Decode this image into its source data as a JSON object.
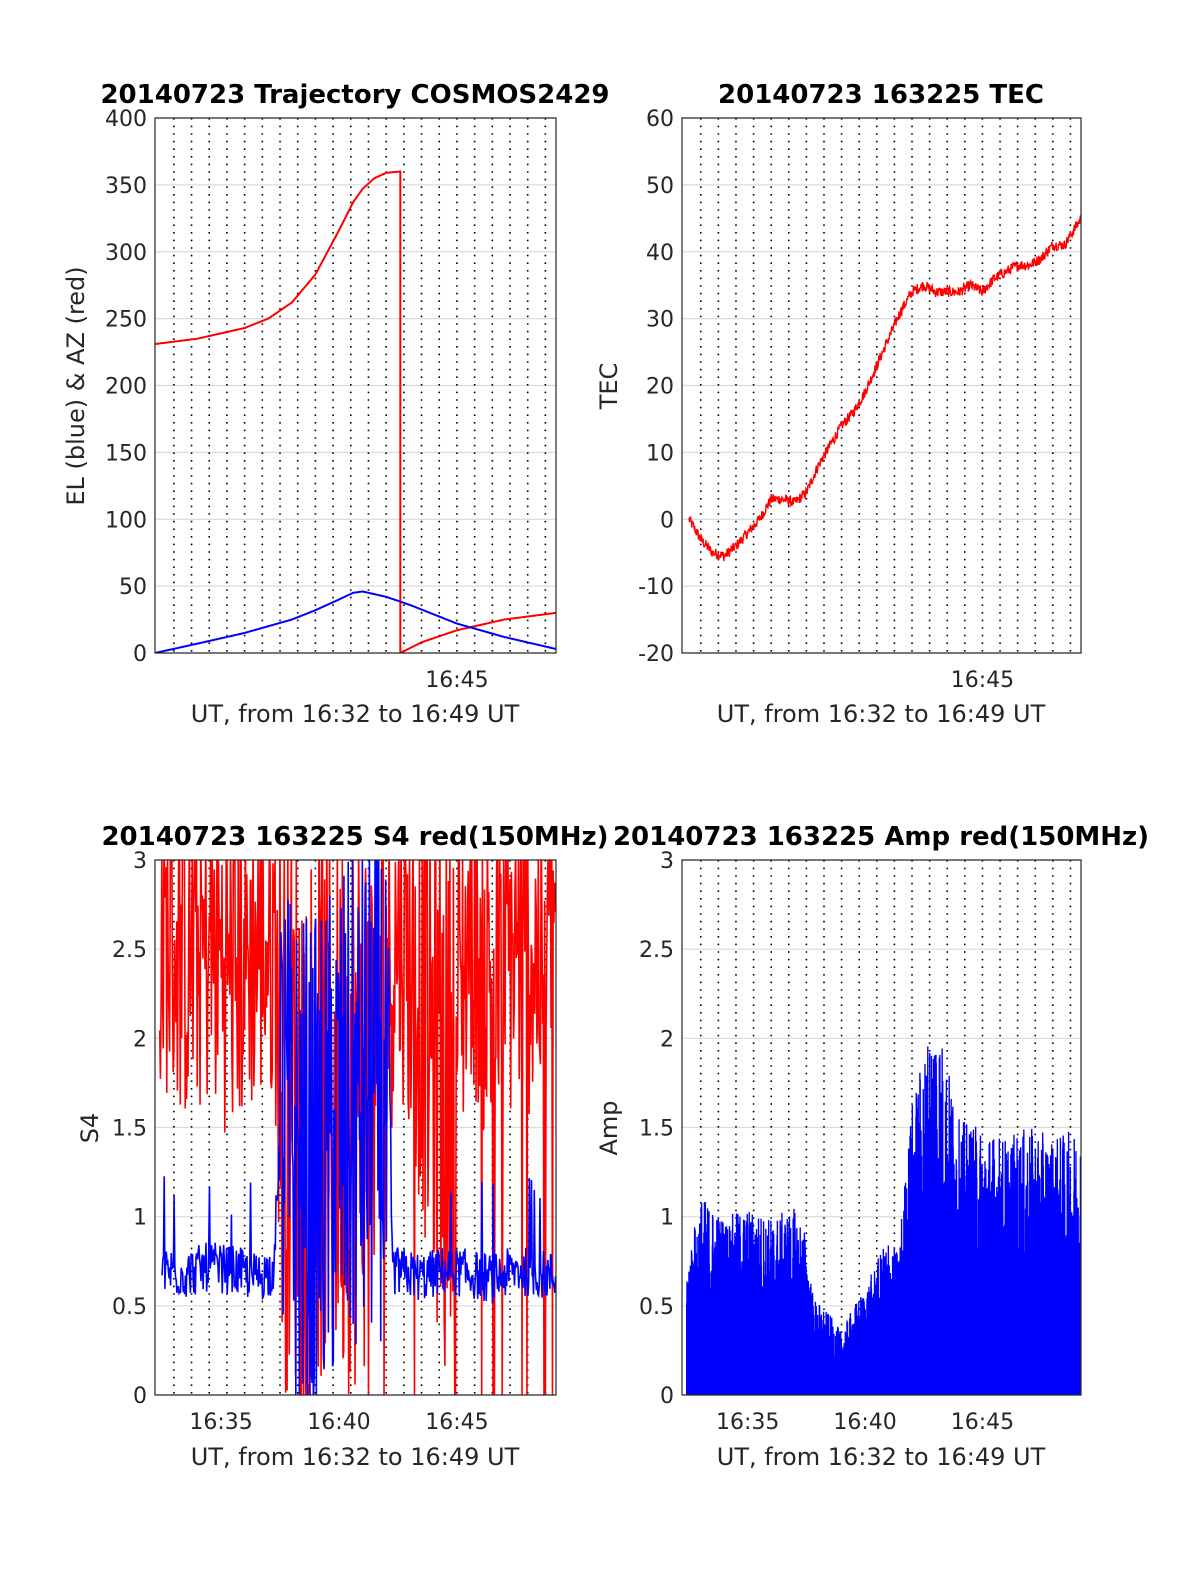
{
  "chart_data": [
    {
      "type": "line",
      "title": "20140723 Trajectory COSMOS2429",
      "xlabel": "UT, from 16:32 to 16:49 UT",
      "ylabel": "EL (blue) & AZ (red)",
      "xlim": [
        32.2,
        49.2
      ],
      "ylim": [
        0,
        400
      ],
      "yticks": [
        0,
        50,
        100,
        150,
        200,
        250,
        300,
        350,
        400
      ],
      "xticks": [
        {
          "x": 45,
          "label": "16:45"
        }
      ],
      "grid": "vertical dotted every 45 s, horizontal at y ticks",
      "series": [
        {
          "color": "#ff0000",
          "x": [
            32.2,
            34,
            36,
            37,
            38,
            39,
            40,
            40.6,
            41,
            41.5,
            42,
            42.6,
            42.6,
            43.5,
            45,
            47,
            49.2
          ],
          "y": [
            231,
            235,
            243,
            250,
            262,
            283,
            316,
            337,
            347,
            355,
            359,
            360,
            0,
            8,
            17,
            25,
            30
          ]
        },
        {
          "color": "#0000ff",
          "x": [
            32.2,
            34,
            36,
            38,
            39,
            40,
            40.6,
            41,
            42,
            43,
            44,
            45,
            47,
            49.2
          ],
          "y": [
            0,
            7,
            15,
            25,
            32,
            40,
            45,
            46,
            42,
            36,
            29,
            22,
            12,
            3
          ]
        }
      ]
    },
    {
      "type": "line",
      "title": "20140723 163225 TEC",
      "xlabel": "UT, from 16:32 to 16:49 UT",
      "ylabel": "TEC",
      "xlim": [
        32.2,
        49.2
      ],
      "ylim": [
        -20,
        60
      ],
      "yticks": [
        -20,
        -10,
        0,
        10,
        20,
        30,
        40,
        50,
        60
      ],
      "xticks": [
        {
          "x": 45,
          "label": "16:45"
        }
      ],
      "series": [
        {
          "color": "#ff0000",
          "x": [
            32.5,
            33,
            33.5,
            34,
            34.5,
            35,
            35.5,
            36,
            36.5,
            37,
            37.5,
            38,
            38.5,
            39,
            39.5,
            40,
            40.5,
            41,
            41.5,
            42,
            42.5,
            43,
            43.5,
            44,
            44.5,
            45,
            45.5,
            46,
            46.5,
            47,
            47.5,
            48,
            48.5,
            49.2
          ],
          "y": [
            0,
            -3,
            -5,
            -5.5,
            -4,
            -2,
            0,
            3,
            3,
            2.5,
            4,
            8,
            11,
            14,
            16,
            19,
            23,
            27,
            31,
            34,
            35,
            34,
            34,
            34,
            35,
            34,
            36,
            37,
            38,
            38,
            39,
            41,
            41,
            45
          ]
        }
      ]
    },
    {
      "type": "line",
      "title": "20140723 163225 S4 red(150MHz)",
      "xlabel": "UT, from 16:32 to 16:49 UT",
      "ylabel": "S4",
      "xlim": [
        32.2,
        49.2
      ],
      "ylim": [
        0,
        3
      ],
      "yticks": [
        0,
        0.5,
        1,
        1.5,
        2,
        2.5,
        3
      ],
      "xticks": [
        {
          "x": 35,
          "label": "16:35"
        },
        {
          "x": 40,
          "label": "16:40"
        },
        {
          "x": 45,
          "label": "16:45"
        }
      ],
      "series": [
        {
          "color": "#ff0000",
          "description_points": {
            "x": [
              32.5,
              33.5,
              34.5,
              35.5,
              36.5,
              37.3,
              37.6,
              38.0,
              39.0,
              40.0,
              40.5,
              41.0,
              42.5,
              43.5,
              44.5,
              45.5,
              46.5,
              47.5,
              48.5,
              49.2
            ],
            "y_low": [
              1.7,
              1.5,
              1.6,
              1.4,
              1.6,
              1.6,
              0,
              0,
              0,
              0,
              0,
              0,
              1.8,
              1.0,
              0,
              1.8,
              1.2,
              1.6,
              1.5,
              2.1
            ],
            "y_high": [
              3,
              3,
              3,
              3,
              3,
              3,
              3,
              3,
              3,
              3,
              3,
              3,
              3,
              3,
              3,
              3,
              3,
              3,
              3,
              3
            ]
          }
        },
        {
          "color": "#0000ff",
          "x": [
            32.5,
            33.5,
            34.5,
            35.5,
            36.5,
            37.2,
            37.6,
            38.0,
            39.0,
            40.0,
            41.0,
            41.8,
            42.3,
            43.5,
            44.5,
            45.5,
            46.5,
            47.5,
            48.5,
            49.2
          ],
          "y": [
            0.7,
            0.68,
            0.72,
            0.7,
            0.66,
            0.7,
            1.6,
            1.3,
            1.2,
            1.5,
            1.6,
            1.8,
            0.7,
            0.66,
            0.7,
            0.68,
            0.65,
            0.7,
            0.68,
            0.66
          ]
        }
      ]
    },
    {
      "type": "line",
      "title": "20140723 163225 Amp red(150MHz)",
      "xlabel": "UT, from 16:32 to 16:49 UT",
      "ylabel": "Amp",
      "xlim": [
        32.2,
        49.2
      ],
      "ylim": [
        0,
        3
      ],
      "yticks": [
        0,
        0.5,
        1,
        1.5,
        2,
        2.5,
        3
      ],
      "xticks": [
        {
          "x": 35,
          "label": "16:35"
        },
        {
          "x": 40,
          "label": "16:40"
        },
        {
          "x": 45,
          "label": "16:45"
        }
      ],
      "series": [
        {
          "color": "#0000ff",
          "x": [
            32.4,
            33.0,
            34.0,
            35.0,
            36.0,
            37.0,
            37.4,
            37.8,
            38.5,
            39.0,
            39.5,
            40.0,
            40.5,
            41.0,
            41.4,
            42.0,
            43.0,
            44.0,
            45.0,
            46.0,
            47.0,
            48.0,
            49.2
          ],
          "y_max": [
            0.75,
            1.12,
            1.0,
            1.05,
            1.0,
            1.05,
            0.95,
            0.55,
            0.45,
            0.35,
            0.5,
            0.6,
            0.75,
            0.9,
            0.8,
            1.65,
            2.2,
            1.55,
            1.5,
            1.45,
            1.5,
            1.45,
            1.5
          ]
        }
      ]
    }
  ]
}
